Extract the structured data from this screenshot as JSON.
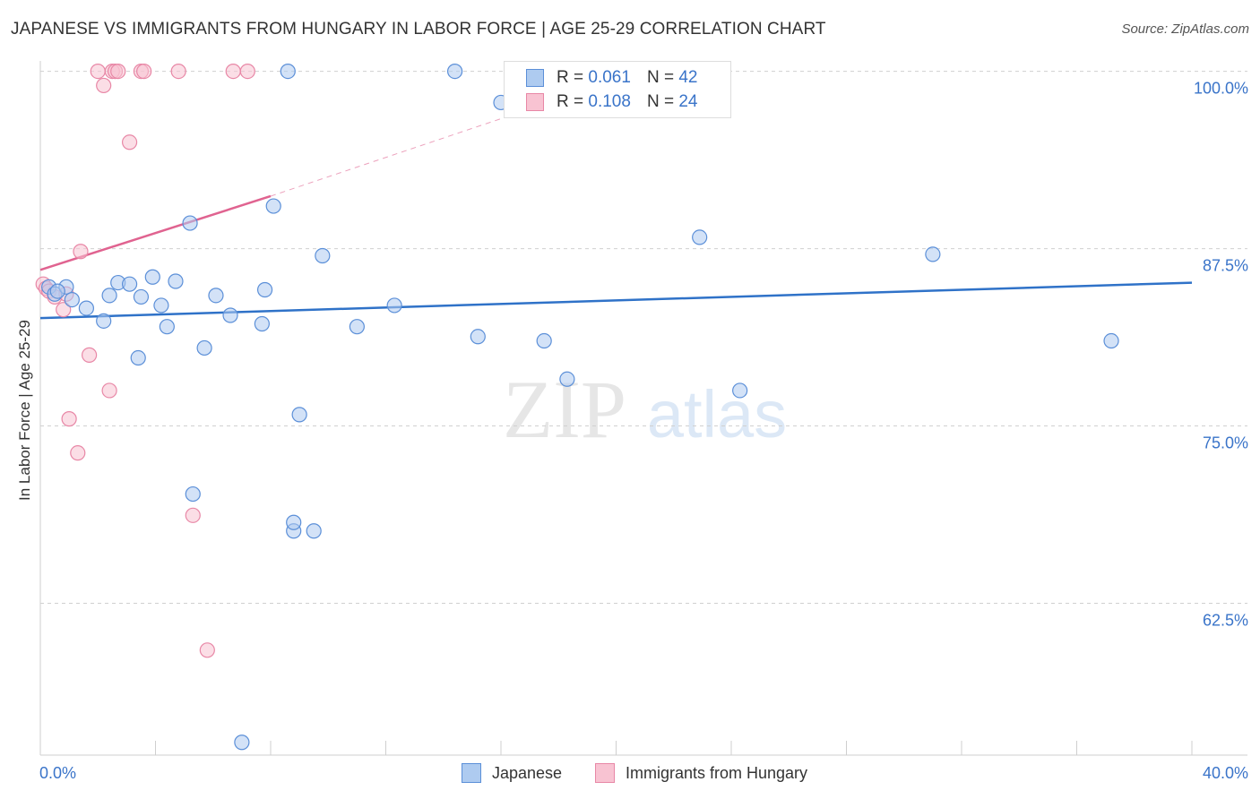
{
  "header": {
    "title": "JAPANESE VS IMMIGRANTS FROM HUNGARY IN LABOR FORCE | AGE 25-29 CORRELATION CHART",
    "source": "Source: ZipAtlas.com"
  },
  "watermark": {
    "part1": "ZIP",
    "part2": "atlas"
  },
  "colors": {
    "blue_fill": "#aecbf0",
    "blue_stroke": "#5b8fd8",
    "blue_line": "#2f72c8",
    "pink_fill": "#f8c3d2",
    "pink_stroke": "#e887a6",
    "pink_line": "#e06390",
    "axis_text": "#3a74c9",
    "grid": "#d0d0d0"
  },
  "legend": {
    "series": [
      {
        "r_label": "R = ",
        "r_value": "0.061",
        "n_label": "N = ",
        "n_value": "42"
      },
      {
        "r_label": "R = ",
        "r_value": "0.108",
        "n_label": "N = ",
        "n_value": "24"
      }
    ]
  },
  "bottom_legend": [
    "Japanese",
    "Immigrants from Hungary"
  ],
  "chart_data": {
    "type": "scatter",
    "title": "JAPANESE VS IMMIGRANTS FROM HUNGARY IN LABOR FORCE | AGE 25-29 CORRELATION CHART",
    "xlabel": "",
    "ylabel": "In Labor Force | Age 25-29",
    "xlim": [
      0,
      40
    ],
    "ylim": [
      51.8,
      102.5
    ],
    "x_ticks": [
      0,
      4,
      8,
      12,
      16,
      20,
      24,
      28,
      32,
      36,
      40
    ],
    "x_tick_labels": {
      "first": "0.0%",
      "last": "40.0%"
    },
    "y_ticks": [
      100,
      87.5,
      75,
      62.5
    ],
    "y_tick_labels": [
      "100.0%",
      "87.5%",
      "75.0%",
      "62.5%"
    ],
    "grid_y": true,
    "series": [
      {
        "name": "Japanese",
        "x": [
          0.3,
          0.5,
          0.9,
          1.1,
          1.6,
          2.2,
          2.4,
          2.7,
          3.1,
          3.4,
          3.5,
          3.9,
          4.2,
          4.4,
          4.7,
          5.2,
          5.3,
          5.7,
          6.1,
          6.6,
          7.0,
          7.7,
          7.8,
          8.1,
          8.6,
          8.8,
          9.0,
          9.8,
          11.0,
          12.3,
          14.4,
          15.2,
          16.0,
          17.5,
          18.3,
          22.9,
          24.3,
          31.0,
          37.2,
          8.8,
          9.5,
          0.6
        ],
        "y": [
          84.8,
          84.3,
          84.8,
          83.9,
          83.3,
          82.4,
          84.2,
          85.1,
          85.0,
          79.8,
          84.1,
          85.5,
          83.5,
          82.0,
          85.2,
          89.3,
          70.2,
          80.5,
          84.2,
          82.8,
          52.7,
          82.2,
          84.6,
          90.5,
          100.0,
          67.6,
          75.8,
          87.0,
          82.0,
          83.5,
          100.0,
          81.3,
          97.8,
          81.0,
          78.3,
          88.3,
          77.5,
          87.1,
          81.0,
          68.2,
          67.6,
          84.5
        ]
      },
      {
        "name": "Immigrants from Hungary",
        "x": [
          0.1,
          0.2,
          0.3,
          0.5,
          0.8,
          0.9,
          1.0,
          1.3,
          1.4,
          1.7,
          2.0,
          2.2,
          2.4,
          2.5,
          2.6,
          2.7,
          3.1,
          3.5,
          3.6,
          4.8,
          5.3,
          5.8,
          6.7,
          7.2
        ],
        "y": [
          85.0,
          84.7,
          84.5,
          84.1,
          83.2,
          84.3,
          75.5,
          73.1,
          87.3,
          80.0,
          100.0,
          99.0,
          77.5,
          100.0,
          100.0,
          100.0,
          95.0,
          100.0,
          100.0,
          100.0,
          68.7,
          59.2,
          100.0,
          100.0
        ]
      }
    ],
    "trendlines": [
      {
        "series": "Japanese",
        "x": [
          0,
          40
        ],
        "y": [
          82.6,
          85.1
        ],
        "style": "solid"
      },
      {
        "series": "Immigrants from Hungary",
        "x": [
          0,
          8
        ],
        "y": [
          86.0,
          91.2
        ],
        "style": "solid"
      },
      {
        "series": "Immigrants from Hungary",
        "x": [
          8,
          16.5
        ],
        "y": [
          91.2,
          97.0
        ],
        "style": "dashed"
      }
    ]
  }
}
